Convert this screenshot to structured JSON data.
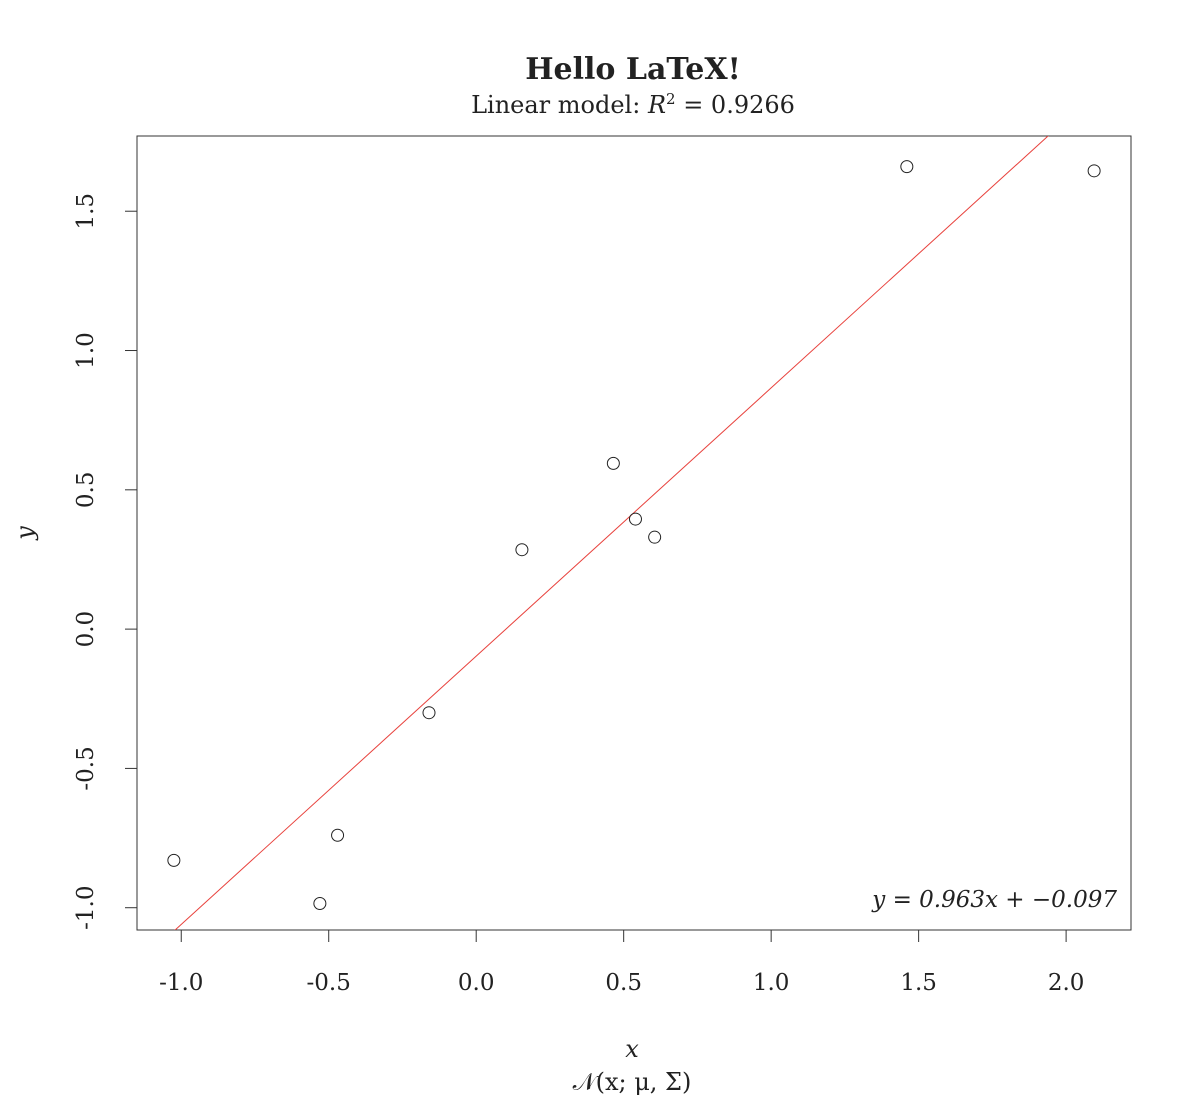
{
  "chart_data": {
    "type": "scatter",
    "title": "Hello LaTeX!",
    "subtitle": {
      "prefix": "Linear model: ",
      "var": "R",
      "sup": "2",
      "suffix": " = 0.9266"
    },
    "xlabel": "x",
    "xsublabel": "𝒩(x; μ, Σ)",
    "ylabel": "y",
    "xlim": [
      -1.15,
      2.22
    ],
    "ylim": [
      -1.08,
      1.77
    ],
    "xticks": [
      -1.0,
      -0.5,
      0.0,
      0.5,
      1.0,
      1.5,
      2.0
    ],
    "xtick_labels": [
      "-1.0",
      "-0.5",
      "0.0",
      "0.5",
      "1.0",
      "1.5",
      "2.0"
    ],
    "yticks": [
      -1.0,
      -0.5,
      0.0,
      0.5,
      1.0,
      1.5
    ],
    "ytick_labels": [
      "-1.0",
      "-0.5",
      "0.0",
      "0.5",
      "1.0",
      "1.5"
    ],
    "points": [
      {
        "x": -1.025,
        "y": -0.83
      },
      {
        "x": -0.53,
        "y": -0.985
      },
      {
        "x": -0.47,
        "y": -0.74
      },
      {
        "x": -0.16,
        "y": -0.3
      },
      {
        "x": 0.155,
        "y": 0.285
      },
      {
        "x": 0.465,
        "y": 0.595
      },
      {
        "x": 0.54,
        "y": 0.395
      },
      {
        "x": 0.605,
        "y": 0.33
      },
      {
        "x": 1.46,
        "y": 1.66
      },
      {
        "x": 2.095,
        "y": 1.645
      }
    ],
    "fit": {
      "slope": 0.963,
      "intercept": -0.097,
      "color": "#e8413c"
    },
    "annotation": "y = 0.963x + −0.097",
    "grid": false,
    "legend": "none"
  }
}
